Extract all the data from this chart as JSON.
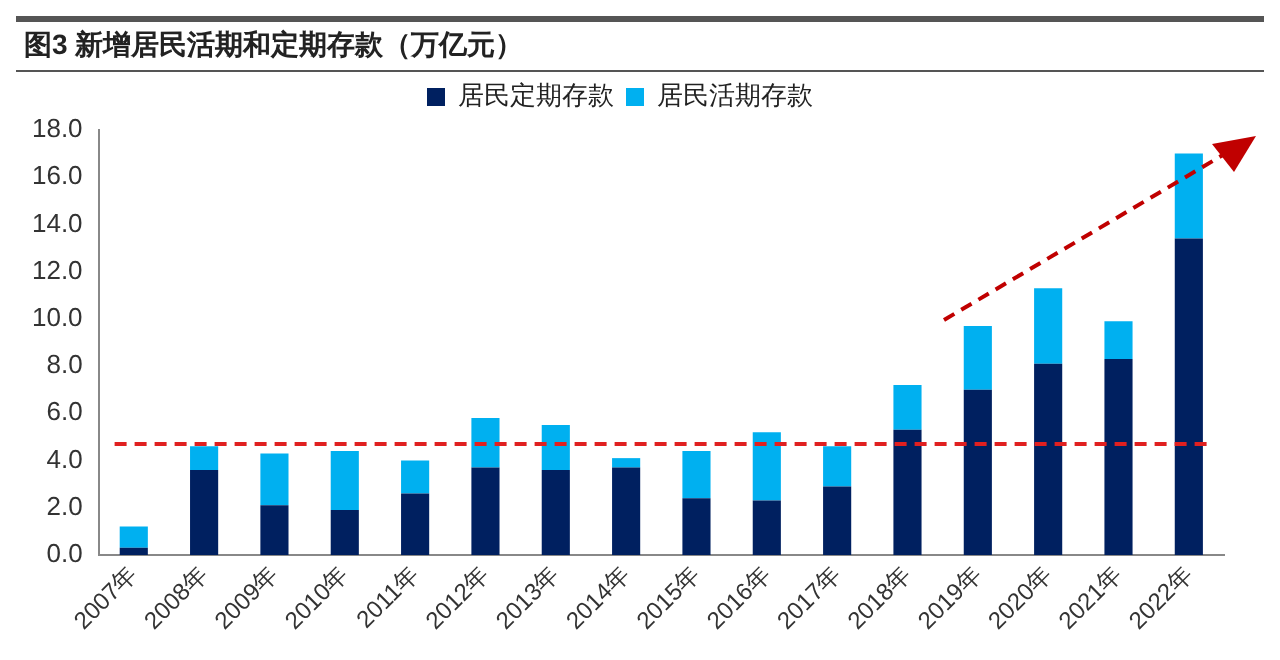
{
  "chart_data": {
    "type": "bar",
    "title": "图3  新增居民活期和定期存款（万亿元）",
    "stacked": true,
    "categories": [
      "2007年",
      "2008年",
      "2009年",
      "2010年",
      "2011年",
      "2012年",
      "2013年",
      "2014年",
      "2015年",
      "2016年",
      "2017年",
      "2018年",
      "2019年",
      "2020年",
      "2021年",
      "2022年"
    ],
    "series": [
      {
        "name": "居民定期存款",
        "color": "#002060",
        "values": [
          0.3,
          3.6,
          2.1,
          1.9,
          2.6,
          3.7,
          3.6,
          3.7,
          2.4,
          2.3,
          2.9,
          5.3,
          7.0,
          8.1,
          8.3,
          13.4
        ]
      },
      {
        "name": "居民活期存款",
        "color": "#00b0f0",
        "values": [
          0.9,
          1.0,
          2.2,
          2.5,
          1.4,
          2.1,
          1.9,
          0.4,
          2.0,
          2.9,
          1.7,
          1.9,
          2.7,
          3.2,
          1.6,
          3.6
        ]
      }
    ],
    "ylim": [
      0,
      18
    ],
    "yticks": [
      {
        "value": 0,
        "label": "0.0"
      },
      {
        "value": 2,
        "label": "2.0"
      },
      {
        "value": 4,
        "label": "4.0"
      },
      {
        "value": 6,
        "label": "6.0"
      },
      {
        "value": 8,
        "label": "8.0"
      },
      {
        "value": 10,
        "label": "10.0"
      },
      {
        "value": 12,
        "label": "12.0"
      },
      {
        "value": 14,
        "label": "14.0"
      },
      {
        "value": 16,
        "label": "16.0"
      },
      {
        "value": 18,
        "label": "18.0"
      }
    ],
    "ref_lines": [
      {
        "axis": "y",
        "value": 4.7,
        "color": "#e02020",
        "line_style": "dashed"
      }
    ],
    "grid": false,
    "legend": "top"
  }
}
